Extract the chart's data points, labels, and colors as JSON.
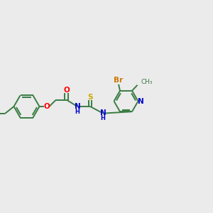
{
  "background_color": "#ebebeb",
  "bond_color": "#3a7d44",
  "O_color": "#ff0000",
  "N_color": "#0000cc",
  "S_color": "#ccaa00",
  "Br_color": "#cc7700",
  "figsize": [
    3.0,
    3.0
  ],
  "dpi": 100,
  "xlim": [
    0,
    12
  ],
  "ylim": [
    0,
    10
  ]
}
